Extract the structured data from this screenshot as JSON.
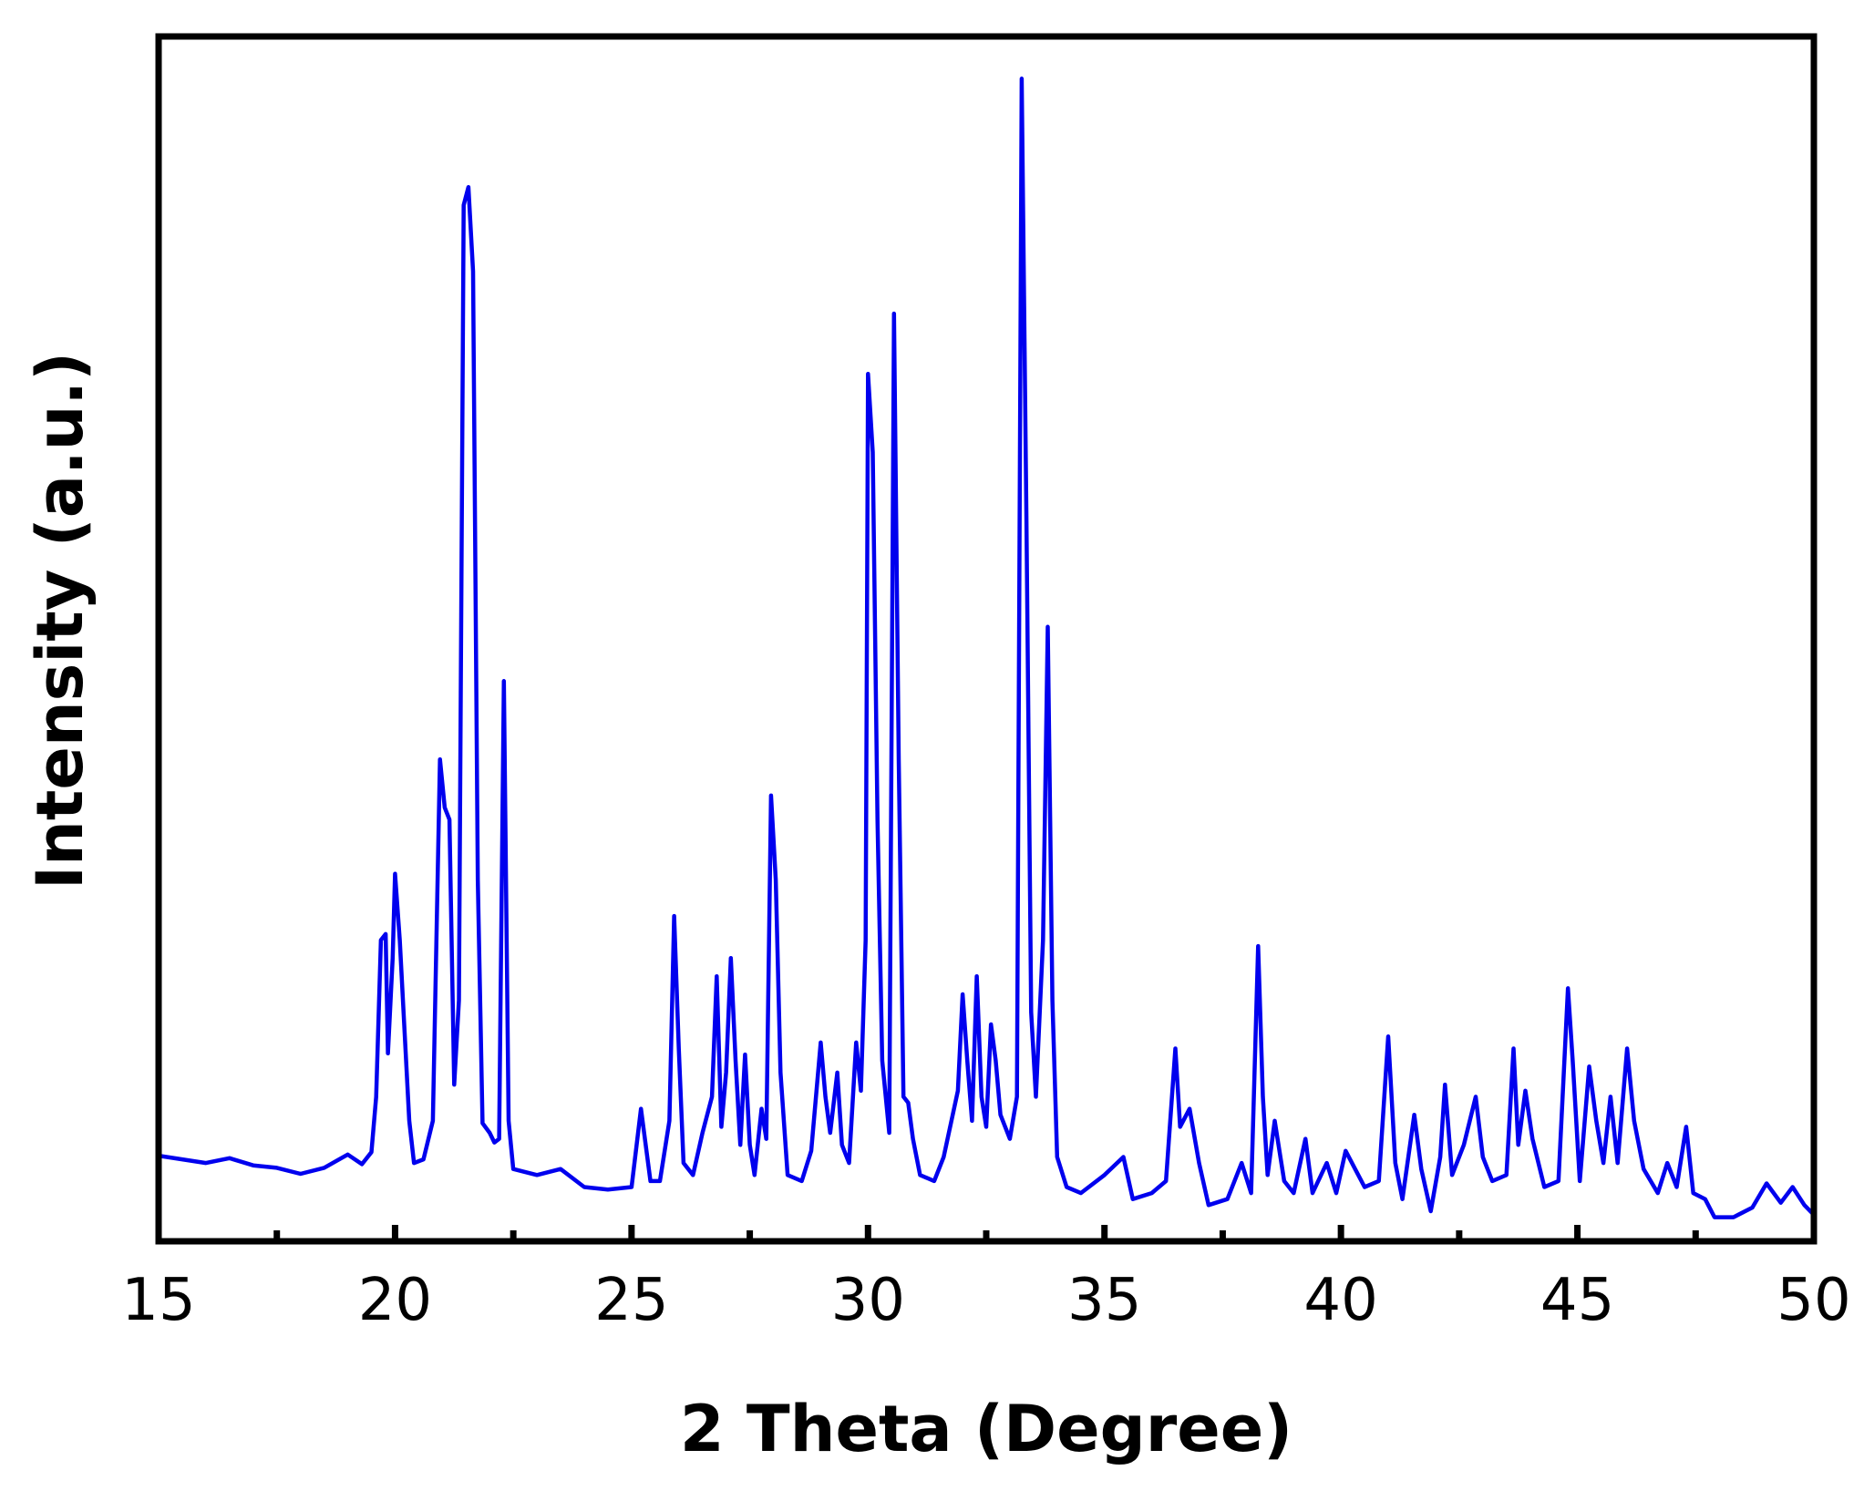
{
  "chart_data": {
    "type": "line",
    "xlabel": "2 Theta (Degree)",
    "ylabel": "Intensity (a.u.)",
    "xlim": [
      15,
      50
    ],
    "ylim": [
      0,
      100
    ],
    "y_ticks_shown": false,
    "grid": false,
    "legend": "none",
    "x_ticks": [
      {
        "value": 15,
        "label": "15"
      },
      {
        "value": 20,
        "label": "20"
      },
      {
        "value": 25,
        "label": "25"
      },
      {
        "value": 30,
        "label": "30"
      },
      {
        "value": 35,
        "label": "35"
      },
      {
        "value": 40,
        "label": "40"
      },
      {
        "value": 45,
        "label": "45"
      },
      {
        "value": 50,
        "label": "50"
      }
    ],
    "x_minor_ticks": [
      17.5,
      22.5,
      27.5,
      32.5,
      37.5,
      42.5,
      47.5
    ],
    "series": [
      {
        "color": "#0000ee",
        "points": [
          [
            15.0,
            7.1
          ],
          [
            15.5,
            6.8
          ],
          [
            16.0,
            6.5
          ],
          [
            16.5,
            6.9
          ],
          [
            17.0,
            6.3
          ],
          [
            17.5,
            6.1
          ],
          [
            18.0,
            5.6
          ],
          [
            18.5,
            6.1
          ],
          [
            19.0,
            7.2
          ],
          [
            19.3,
            6.4
          ],
          [
            19.5,
            7.4
          ],
          [
            19.6,
            12.0
          ],
          [
            19.7,
            25.0
          ],
          [
            19.8,
            25.5
          ],
          [
            19.85,
            15.6
          ],
          [
            19.95,
            23.5
          ],
          [
            20.0,
            30.5
          ],
          [
            20.1,
            25.0
          ],
          [
            20.2,
            17.5
          ],
          [
            20.3,
            10.0
          ],
          [
            20.4,
            6.5
          ],
          [
            20.6,
            6.8
          ],
          [
            20.8,
            10.0
          ],
          [
            20.95,
            40.0
          ],
          [
            21.05,
            36.0
          ],
          [
            21.15,
            35.0
          ],
          [
            21.25,
            13.0
          ],
          [
            21.35,
            20.0
          ],
          [
            21.45,
            86.0
          ],
          [
            21.55,
            87.5
          ],
          [
            21.65,
            80.5
          ],
          [
            21.75,
            30.0
          ],
          [
            21.85,
            9.8
          ],
          [
            22.0,
            9.0
          ],
          [
            22.1,
            8.2
          ],
          [
            22.2,
            8.5
          ],
          [
            22.3,
            46.5
          ],
          [
            22.4,
            10.0
          ],
          [
            22.5,
            6.0
          ],
          [
            23.0,
            5.5
          ],
          [
            23.5,
            6.0
          ],
          [
            24.0,
            4.5
          ],
          [
            24.5,
            4.3
          ],
          [
            25.0,
            4.5
          ],
          [
            25.2,
            11.0
          ],
          [
            25.4,
            5.0
          ],
          [
            25.6,
            5.0
          ],
          [
            25.8,
            10.0
          ],
          [
            25.9,
            27.0
          ],
          [
            26.0,
            16.0
          ],
          [
            26.1,
            6.5
          ],
          [
            26.3,
            5.5
          ],
          [
            26.5,
            9.0
          ],
          [
            26.7,
            12.0
          ],
          [
            26.8,
            22.0
          ],
          [
            26.9,
            9.5
          ],
          [
            27.0,
            14.0
          ],
          [
            27.1,
            23.5
          ],
          [
            27.2,
            15.0
          ],
          [
            27.3,
            8.0
          ],
          [
            27.4,
            15.5
          ],
          [
            27.5,
            8.0
          ],
          [
            27.6,
            5.5
          ],
          [
            27.75,
            11.0
          ],
          [
            27.85,
            8.5
          ],
          [
            27.95,
            37.0
          ],
          [
            28.05,
            30.0
          ],
          [
            28.15,
            14.0
          ],
          [
            28.3,
            5.5
          ],
          [
            28.6,
            5.0
          ],
          [
            28.8,
            7.5
          ],
          [
            28.9,
            12.0
          ],
          [
            29.0,
            16.5
          ],
          [
            29.1,
            12.0
          ],
          [
            29.2,
            9.0
          ],
          [
            29.35,
            14.0
          ],
          [
            29.45,
            8.0
          ],
          [
            29.6,
            6.5
          ],
          [
            29.75,
            16.5
          ],
          [
            29.85,
            12.5
          ],
          [
            29.95,
            25.0
          ],
          [
            30.0,
            72.0
          ],
          [
            30.1,
            65.5
          ],
          [
            30.2,
            35.0
          ],
          [
            30.3,
            15.0
          ],
          [
            30.45,
            9.0
          ],
          [
            30.55,
            77.0
          ],
          [
            30.65,
            40.0
          ],
          [
            30.75,
            12.0
          ],
          [
            30.85,
            11.5
          ],
          [
            30.95,
            8.5
          ],
          [
            31.1,
            5.5
          ],
          [
            31.4,
            5.0
          ],
          [
            31.6,
            7.0
          ],
          [
            31.9,
            12.5
          ],
          [
            32.0,
            20.5
          ],
          [
            32.1,
            15.0
          ],
          [
            32.2,
            10.0
          ],
          [
            32.3,
            22.0
          ],
          [
            32.4,
            12.0
          ],
          [
            32.5,
            9.5
          ],
          [
            32.6,
            18.0
          ],
          [
            32.7,
            15.0
          ],
          [
            32.8,
            10.5
          ],
          [
            33.0,
            8.5
          ],
          [
            33.15,
            12.0
          ],
          [
            33.25,
            96.5
          ],
          [
            33.35,
            60.0
          ],
          [
            33.45,
            19.0
          ],
          [
            33.55,
            12.0
          ],
          [
            33.7,
            25.0
          ],
          [
            33.8,
            51.0
          ],
          [
            33.9,
            20.0
          ],
          [
            34.0,
            7.0
          ],
          [
            34.2,
            4.5
          ],
          [
            34.5,
            4.0
          ],
          [
            35.0,
            5.5
          ],
          [
            35.4,
            7.0
          ],
          [
            35.6,
            3.5
          ],
          [
            36.0,
            4.0
          ],
          [
            36.3,
            5.0
          ],
          [
            36.5,
            16.0
          ],
          [
            36.6,
            9.5
          ],
          [
            36.8,
            11.0
          ],
          [
            37.0,
            6.5
          ],
          [
            37.2,
            3.0
          ],
          [
            37.6,
            3.5
          ],
          [
            37.9,
            6.5
          ],
          [
            38.1,
            4.0
          ],
          [
            38.25,
            24.5
          ],
          [
            38.35,
            12.0
          ],
          [
            38.45,
            5.5
          ],
          [
            38.6,
            10.0
          ],
          [
            38.8,
            5.0
          ],
          [
            39.0,
            4.0
          ],
          [
            39.25,
            8.5
          ],
          [
            39.4,
            4.0
          ],
          [
            39.7,
            6.5
          ],
          [
            39.9,
            4.0
          ],
          [
            40.1,
            7.5
          ],
          [
            40.3,
            6.0
          ],
          [
            40.5,
            4.5
          ],
          [
            40.8,
            5.0
          ],
          [
            41.0,
            17.0
          ],
          [
            41.15,
            6.5
          ],
          [
            41.3,
            3.5
          ],
          [
            41.55,
            10.5
          ],
          [
            41.7,
            6.0
          ],
          [
            41.9,
            2.5
          ],
          [
            42.1,
            7.0
          ],
          [
            42.2,
            13.0
          ],
          [
            42.35,
            5.5
          ],
          [
            42.6,
            8.0
          ],
          [
            42.85,
            12.0
          ],
          [
            43.0,
            7.0
          ],
          [
            43.2,
            5.0
          ],
          [
            43.5,
            5.5
          ],
          [
            43.65,
            16.0
          ],
          [
            43.75,
            8.0
          ],
          [
            43.9,
            12.5
          ],
          [
            44.05,
            8.5
          ],
          [
            44.3,
            4.5
          ],
          [
            44.6,
            5.0
          ],
          [
            44.8,
            21.0
          ],
          [
            44.9,
            15.0
          ],
          [
            45.05,
            5.0
          ],
          [
            45.25,
            14.5
          ],
          [
            45.4,
            10.0
          ],
          [
            45.55,
            6.5
          ],
          [
            45.7,
            12.0
          ],
          [
            45.85,
            6.5
          ],
          [
            46.05,
            16.0
          ],
          [
            46.2,
            10.0
          ],
          [
            46.4,
            6.0
          ],
          [
            46.7,
            4.0
          ],
          [
            46.9,
            6.5
          ],
          [
            47.1,
            4.5
          ],
          [
            47.3,
            9.5
          ],
          [
            47.45,
            4.0
          ],
          [
            47.7,
            3.5
          ],
          [
            47.9,
            2.0
          ],
          [
            48.3,
            2.0
          ],
          [
            48.7,
            2.8
          ],
          [
            49.0,
            4.8
          ],
          [
            49.3,
            3.2
          ],
          [
            49.55,
            4.5
          ],
          [
            49.8,
            3.0
          ],
          [
            50.0,
            2.2
          ]
        ]
      }
    ]
  }
}
